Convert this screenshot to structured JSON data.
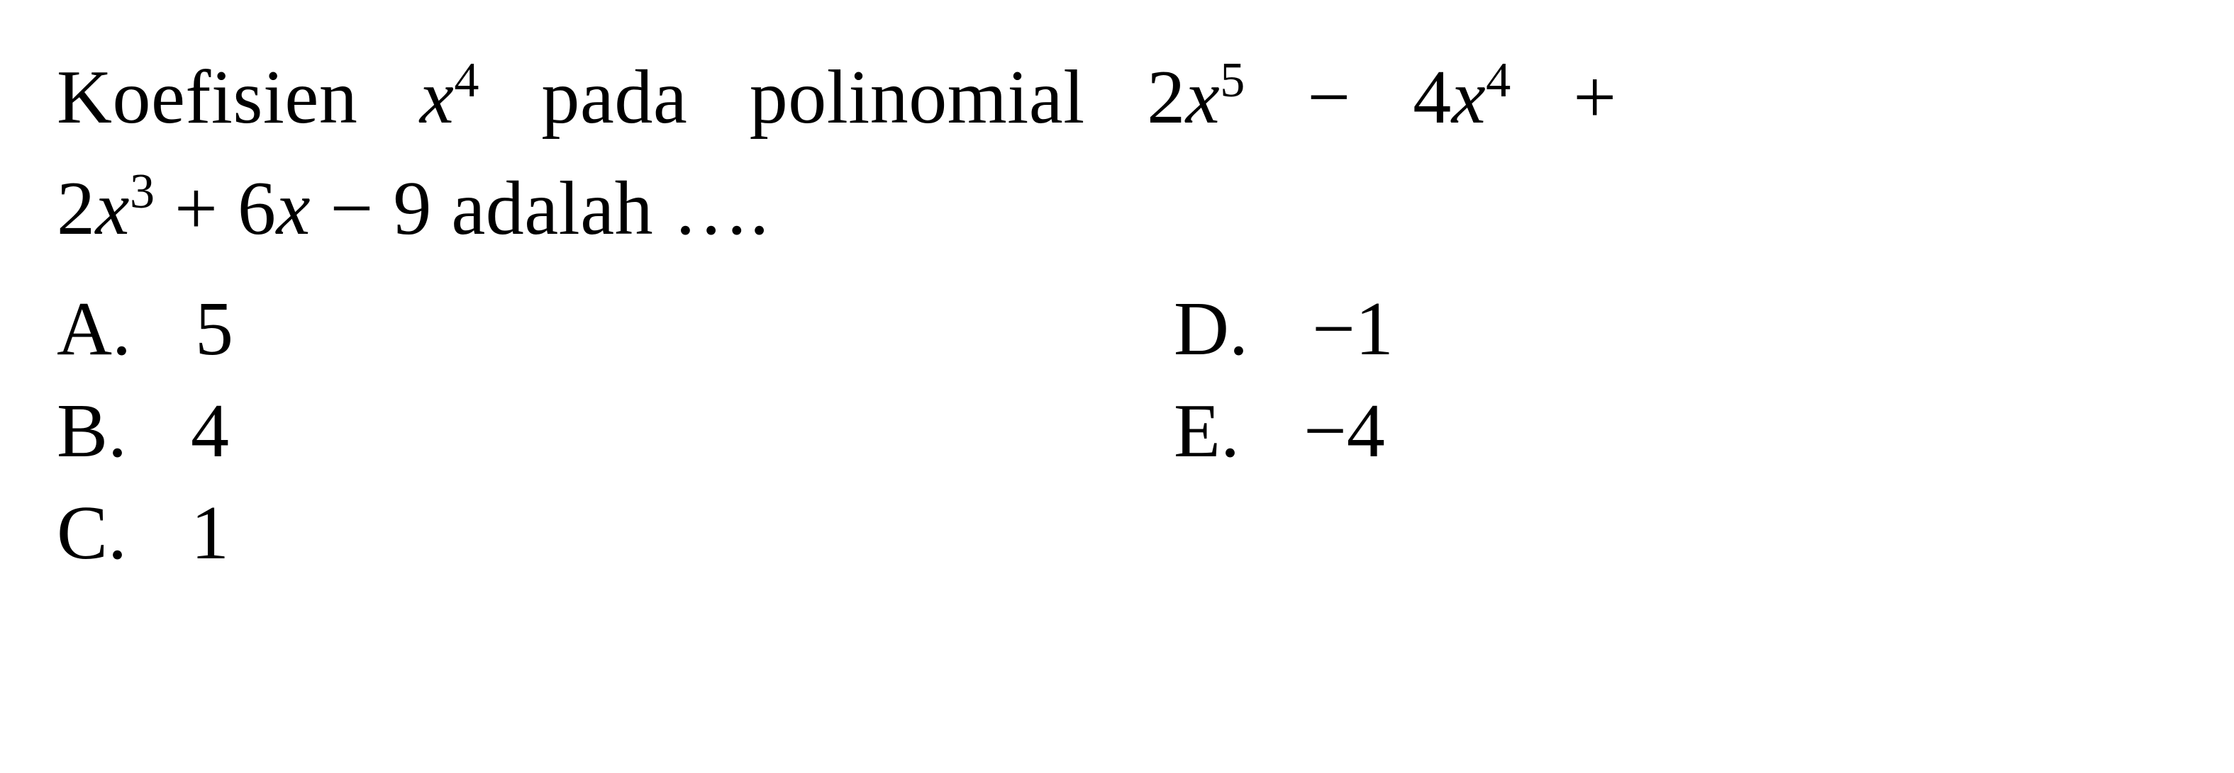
{
  "question": {
    "line1_pre": "Koefisien",
    "line1_var": "x",
    "line1_exp": "4",
    "line1_mid": "pada",
    "line1_mid2": "polinomial",
    "poly_t1_coef": "2",
    "poly_t1_var": "x",
    "poly_t1_exp": "5",
    "poly_t2_op": " − ",
    "poly_t2_coef": "4",
    "poly_t2_var": "x",
    "poly_t2_exp": "4",
    "poly_t3_op": " + ",
    "poly_t3_coef": "2",
    "poly_t3_var": "x",
    "poly_t3_exp": "3",
    "poly_t4_op": " + ",
    "poly_t4_coef": "6",
    "poly_t4_var": "x",
    "poly_t5_op": " − ",
    "poly_t5_coef": "9",
    "line2_tail": " adalah …."
  },
  "options": {
    "a_letter": "A.",
    "a_value": "5",
    "b_letter": "B.",
    "b_value": "4",
    "c_letter": "C.",
    "c_value": "1",
    "d_letter": "D.",
    "d_value": "−1",
    "e_letter": "E.",
    "e_value": "−4"
  }
}
